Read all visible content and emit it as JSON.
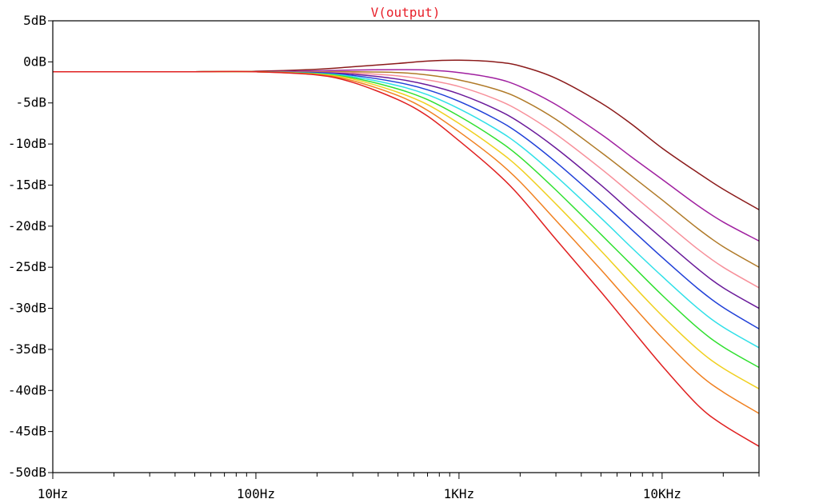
{
  "chart_data": {
    "type": "line",
    "title": "V(output)",
    "title_color": "#e8202a",
    "x_scale": "log",
    "x_unit": "Hz",
    "xlim": [
      10,
      30000
    ],
    "ylim": [
      -50,
      5
    ],
    "x_ticks": [
      {
        "value": 10,
        "label": "10Hz"
      },
      {
        "value": 100,
        "label": "100Hz"
      },
      {
        "value": 1000,
        "label": "1KHz"
      },
      {
        "value": 10000,
        "label": "10KHz"
      }
    ],
    "y_ticks": [
      {
        "value": 5,
        "label": "5dB"
      },
      {
        "value": 0,
        "label": "0dB"
      },
      {
        "value": -5,
        "label": "-5dB"
      },
      {
        "value": -10,
        "label": "-10dB"
      },
      {
        "value": -15,
        "label": "-15dB"
      },
      {
        "value": -20,
        "label": "-20dB"
      },
      {
        "value": -25,
        "label": "-25dB"
      },
      {
        "value": -30,
        "label": "-30dB"
      },
      {
        "value": -35,
        "label": "-35dB"
      },
      {
        "value": -40,
        "label": "-40dB"
      },
      {
        "value": -45,
        "label": "-45dB"
      },
      {
        "value": -50,
        "label": "-50dB"
      }
    ],
    "grid": false,
    "x": [
      10,
      20,
      50,
      100,
      200,
      300,
      500,
      700,
      1000,
      1500,
      2000,
      3000,
      5000,
      7000,
      10000,
      15000,
      20000,
      30000
    ],
    "series": [
      {
        "color": "#8b1a1a",
        "values": [
          -1.2,
          -1.2,
          -1.2,
          -1.15,
          -0.9,
          -0.6,
          -0.2,
          0.1,
          0.2,
          0.0,
          -0.5,
          -2.0,
          -5.0,
          -7.5,
          -10.5,
          -13.5,
          -15.5,
          -18.0
        ]
      },
      {
        "color": "#a020a0",
        "values": [
          -1.2,
          -1.2,
          -1.2,
          -1.2,
          -1.1,
          -1.0,
          -0.95,
          -1.0,
          -1.3,
          -2.0,
          -3.0,
          -5.2,
          -8.8,
          -11.5,
          -14.3,
          -17.5,
          -19.5,
          -21.8
        ]
      },
      {
        "color": "#b07a28",
        "values": [
          -1.2,
          -1.2,
          -1.2,
          -1.2,
          -1.2,
          -1.2,
          -1.3,
          -1.6,
          -2.2,
          -3.3,
          -4.5,
          -7.0,
          -11.0,
          -13.8,
          -16.8,
          -20.3,
          -22.5,
          -25.0
        ]
      },
      {
        "color": "#f7909a",
        "values": [
          -1.2,
          -1.2,
          -1.2,
          -1.2,
          -1.25,
          -1.35,
          -1.7,
          -2.2,
          -3.0,
          -4.5,
          -6.0,
          -8.8,
          -13.0,
          -16.0,
          -19.2,
          -22.8,
          -25.0,
          -27.5
        ]
      },
      {
        "color": "#6a1a9a",
        "values": [
          -1.2,
          -1.2,
          -1.2,
          -1.2,
          -1.3,
          -1.5,
          -2.1,
          -2.8,
          -3.9,
          -5.7,
          -7.4,
          -10.5,
          -15.0,
          -18.2,
          -21.5,
          -25.2,
          -27.5,
          -30.0
        ]
      },
      {
        "color": "#2040d8",
        "values": [
          -1.2,
          -1.2,
          -1.2,
          -1.2,
          -1.35,
          -1.65,
          -2.5,
          -3.4,
          -4.8,
          -6.9,
          -8.8,
          -12.2,
          -17.0,
          -20.3,
          -23.8,
          -27.6,
          -29.9,
          -32.5
        ]
      },
      {
        "color": "#30e0e8",
        "values": [
          -1.2,
          -1.2,
          -1.2,
          -1.2,
          -1.4,
          -1.8,
          -2.9,
          -4.0,
          -5.7,
          -8.1,
          -10.2,
          -13.9,
          -19.0,
          -22.5,
          -26.1,
          -30.0,
          -32.3,
          -34.8
        ]
      },
      {
        "color": "#30e030",
        "values": [
          -1.2,
          -1.2,
          -1.2,
          -1.2,
          -1.45,
          -1.95,
          -3.3,
          -4.6,
          -6.6,
          -9.3,
          -11.6,
          -15.6,
          -21.0,
          -24.6,
          -28.4,
          -32.4,
          -34.7,
          -37.2
        ]
      },
      {
        "color": "#f0d020",
        "values": [
          -1.2,
          -1.2,
          -1.2,
          -1.2,
          -1.5,
          -2.1,
          -3.7,
          -5.2,
          -7.5,
          -10.5,
          -13.0,
          -17.3,
          -23.0,
          -26.9,
          -30.9,
          -35.0,
          -37.3,
          -39.8
        ]
      },
      {
        "color": "#f08020",
        "values": [
          -1.2,
          -1.2,
          -1.2,
          -1.2,
          -1.55,
          -2.3,
          -4.1,
          -5.9,
          -8.5,
          -11.8,
          -14.6,
          -19.3,
          -25.3,
          -29.4,
          -33.6,
          -37.9,
          -40.2,
          -42.8
        ]
      },
      {
        "color": "#e02020",
        "values": [
          -1.2,
          -1.2,
          -1.2,
          -1.2,
          -1.6,
          -2.5,
          -4.6,
          -6.6,
          -9.6,
          -13.3,
          -16.4,
          -21.6,
          -28.0,
          -32.4,
          -37.0,
          -41.8,
          -44.2,
          -46.8
        ]
      }
    ]
  }
}
